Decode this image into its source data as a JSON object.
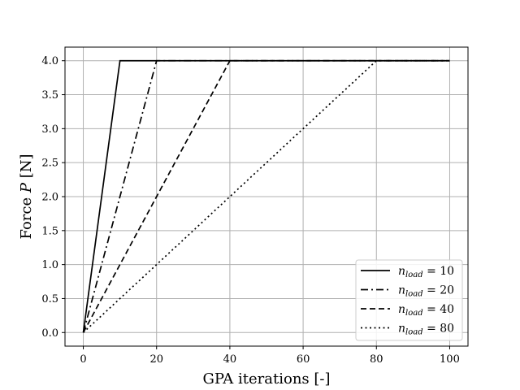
{
  "chart_data": {
    "type": "line",
    "xlabel": "GPA iterations [-]",
    "ylabel": {
      "prefix": "Force ",
      "symbol": "P",
      "suffix": " [N]"
    },
    "xlim": [
      -5,
      105
    ],
    "ylim": [
      -0.2,
      4.2
    ],
    "xticks": [
      0,
      20,
      40,
      60,
      80,
      100
    ],
    "yticks": [
      0.0,
      0.5,
      1.0,
      1.5,
      2.0,
      2.5,
      3.0,
      3.5,
      4.0
    ],
    "xtick_labels": [
      "0",
      "20",
      "40",
      "60",
      "80",
      "100"
    ],
    "ytick_labels": [
      "0.0",
      "0.5",
      "1.0",
      "1.5",
      "2.0",
      "2.5",
      "3.0",
      "3.5",
      "4.0"
    ],
    "grid": true,
    "legend_position": "lower-right",
    "series": [
      {
        "name": "n_load = 10",
        "sym": "n",
        "sub": "load",
        "value": "10",
        "style": "solid",
        "x": [
          0,
          10,
          100
        ],
        "y": [
          0,
          4,
          4
        ]
      },
      {
        "name": "n_load = 20",
        "sym": "n",
        "sub": "load",
        "value": "20",
        "style": "dashdot",
        "x": [
          0,
          20,
          100
        ],
        "y": [
          0,
          4,
          4
        ]
      },
      {
        "name": "n_load = 40",
        "sym": "n",
        "sub": "load",
        "value": "40",
        "style": "dashed",
        "x": [
          0,
          40,
          100
        ],
        "y": [
          0,
          4,
          4
        ]
      },
      {
        "name": "n_load = 80",
        "sym": "n",
        "sub": "load",
        "value": "80",
        "style": "dotted",
        "x": [
          0,
          80,
          100
        ],
        "y": [
          0,
          4,
          4
        ]
      }
    ]
  }
}
